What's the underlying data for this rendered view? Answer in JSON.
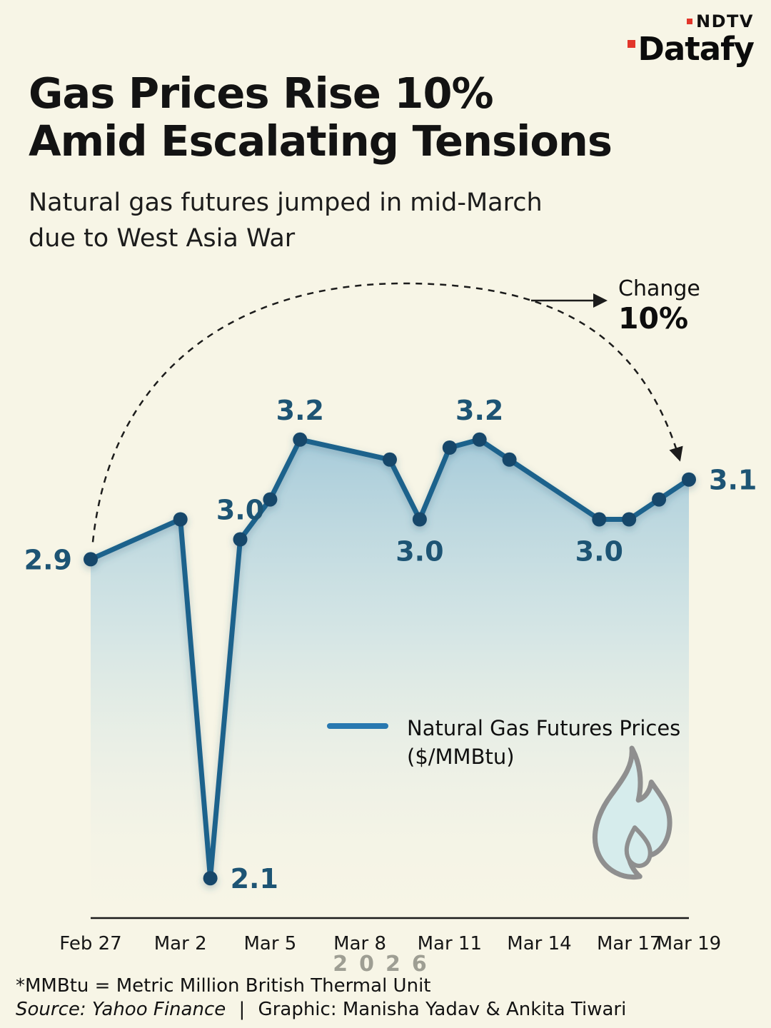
{
  "logo": {
    "brand": "NDTV",
    "product": "Datafy"
  },
  "title": {
    "lines": [
      "Gas Prices Rise 10%",
      "Amid Escalating Tensions"
    ]
  },
  "subtitle": {
    "lines": [
      "Natural gas futures jumped in mid-March",
      "due to West Asia War"
    ]
  },
  "annotation": {
    "label": "Change",
    "value": "10%"
  },
  "legend": {
    "label": "Natural Gas Futures Prices",
    "unit": "($/MMBtu)"
  },
  "chart_data": {
    "type": "area",
    "title": "Natural Gas Futures Prices ($/MMBtu)",
    "ylim": [
      2.0,
      3.3
    ],
    "year": "2026",
    "points": [
      {
        "date": "Feb 27",
        "day": 0,
        "value": 2.9,
        "label": "2.9",
        "label_pos": "left"
      },
      {
        "date": "Mar 2",
        "day": 3,
        "value": 3.0
      },
      {
        "date": "Mar 3",
        "day": 4,
        "value": 2.1,
        "label": "2.1",
        "label_pos": "right"
      },
      {
        "date": "Mar 4",
        "day": 5,
        "value": 2.95,
        "label": "3.0",
        "label_pos": "above"
      },
      {
        "date": "Mar 5",
        "day": 6,
        "value": 3.05
      },
      {
        "date": "Mar 6",
        "day": 7,
        "value": 3.2,
        "label": "3.2",
        "label_pos": "above"
      },
      {
        "date": "Mar 9",
        "day": 10,
        "value": 3.15
      },
      {
        "date": "Mar 10",
        "day": 11,
        "value": 3.0,
        "label": "3.0",
        "label_pos": "below"
      },
      {
        "date": "Mar 11",
        "day": 12,
        "value": 3.18
      },
      {
        "date": "Mar 12",
        "day": 13,
        "value": 3.2,
        "label": "3.2",
        "label_pos": "above"
      },
      {
        "date": "Mar 13",
        "day": 14,
        "value": 3.15
      },
      {
        "date": "Mar 16",
        "day": 17,
        "value": 3.0,
        "label": "3.0",
        "label_pos": "below"
      },
      {
        "date": "Mar 17",
        "day": 18,
        "value": 3.0
      },
      {
        "date": "Mar 18",
        "day": 19,
        "value": 3.05
      },
      {
        "date": "Mar 19",
        "day": 20,
        "value": 3.1,
        "label": "3.1",
        "label_pos": "right"
      }
    ],
    "x_ticks": [
      {
        "label": "Feb 27",
        "day": 0
      },
      {
        "label": "Mar 2",
        "day": 3
      },
      {
        "label": "Mar 5",
        "day": 6
      },
      {
        "label": "Mar 8",
        "day": 9
      },
      {
        "label": "Mar 11",
        "day": 12
      },
      {
        "label": "Mar 14",
        "day": 15
      },
      {
        "label": "Mar 17",
        "day": 18
      },
      {
        "label": "Mar 19",
        "day": 20
      }
    ],
    "colors": {
      "line": "#1d628c",
      "dot": "#15476b",
      "label": "#1d5474",
      "legend_swatch": "#2878b0",
      "area_top": "#97c2d6",
      "background": "#f7f5e6",
      "accent_red": "#e2362b"
    }
  },
  "footer": {
    "footnote": "*MMBtu = Metric Million British Thermal Unit",
    "source": "Source: Yahoo Finance",
    "separator": "|",
    "credit": "Graphic: Manisha Yadav & Ankita Tiwari"
  }
}
